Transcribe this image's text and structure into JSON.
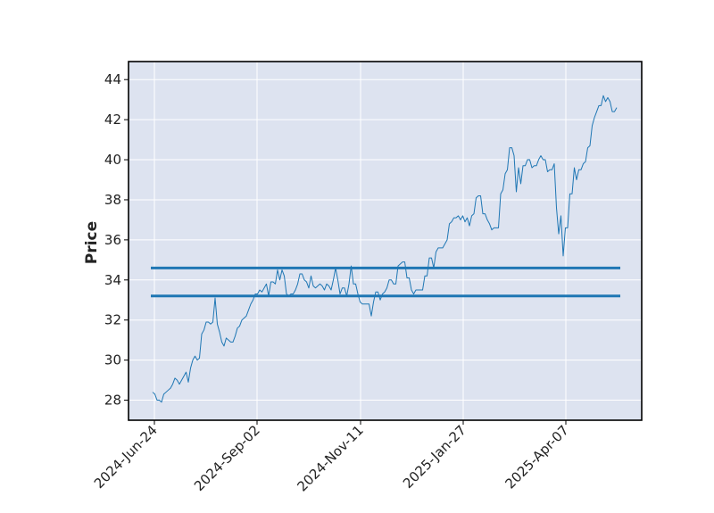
{
  "chart_data": {
    "type": "line",
    "title": "",
    "xlabel": "",
    "ylabel": "Price",
    "x_tick_labels": [
      "2024-Jun-24",
      "2024-Sep-02",
      "2024-Nov-11",
      "2025-Jan-27",
      "2025-Apr-07"
    ],
    "y_ticks": [
      28,
      30,
      32,
      34,
      36,
      38,
      40,
      42,
      44
    ],
    "ylim": [
      27,
      44.9
    ],
    "grid": true,
    "legend": "none",
    "colors": {
      "line": "#1f77b4",
      "plot_background": "#dde3f0",
      "grid": "#ffffff",
      "frame": "#000000"
    },
    "horizontal_lines": [
      34.6,
      33.2
    ],
    "series": [
      {
        "values": [
          28.4,
          28.3,
          28.0,
          28.0,
          27.9,
          28.3,
          28.4,
          28.5,
          28.6,
          28.8,
          29.1,
          29.0,
          28.8,
          29.0,
          29.2,
          29.4,
          28.9,
          29.6,
          30.0,
          30.2,
          30.0,
          30.1,
          31.3,
          31.5,
          31.9,
          31.9,
          31.8,
          31.9,
          33.1,
          31.8,
          31.4,
          30.9,
          30.7,
          31.1,
          31.0,
          30.9,
          30.9,
          31.2,
          31.6,
          31.7,
          32.0,
          32.1,
          32.2,
          32.5,
          32.8,
          33.0,
          33.3,
          33.3,
          33.5,
          33.4,
          33.6,
          33.8,
          33.2,
          33.9,
          33.9,
          33.8,
          34.5,
          34.0,
          34.5,
          34.2,
          33.3,
          33.2,
          33.3,
          33.3,
          33.5,
          33.8,
          34.3,
          34.3,
          34.0,
          33.9,
          33.6,
          34.2,
          33.7,
          33.6,
          33.7,
          33.8,
          33.7,
          33.5,
          33.8,
          33.7,
          33.5,
          34.0,
          34.6,
          34.0,
          33.3,
          33.6,
          33.6,
          33.2,
          33.8,
          34.7,
          33.8,
          33.8,
          33.3,
          32.9,
          32.8,
          32.8,
          32.8,
          32.8,
          32.2,
          32.9,
          33.4,
          33.4,
          33.0,
          33.3,
          33.4,
          33.6,
          34.0,
          34.0,
          33.8,
          33.8,
          34.7,
          34.8,
          34.9,
          34.9,
          34.1,
          34.1,
          33.5,
          33.3,
          33.5,
          33.5,
          33.5,
          33.5,
          34.2,
          34.2,
          35.1,
          35.1,
          34.6,
          35.4,
          35.6,
          35.6,
          35.6,
          35.8,
          36.0,
          36.8,
          36.9,
          37.1,
          37.1,
          37.2,
          37.0,
          37.2,
          36.9,
          37.1,
          36.7,
          37.2,
          37.3,
          38.1,
          38.2,
          38.2,
          37.3,
          37.3,
          37.0,
          36.8,
          36.5,
          36.6,
          36.6,
          36.6,
          38.3,
          38.5,
          39.3,
          39.5,
          40.6,
          40.6,
          40.2,
          38.4,
          39.6,
          38.8,
          39.7,
          39.7,
          40.0,
          40.0,
          39.6,
          39.7,
          39.7,
          40.0,
          40.2,
          40.0,
          40.0,
          39.4,
          39.5,
          39.5,
          39.8,
          37.6,
          36.3,
          37.2,
          35.2,
          36.6,
          36.6,
          38.3,
          38.3,
          39.6,
          39.0,
          39.5,
          39.5,
          39.8,
          39.9,
          40.6,
          40.7,
          41.7,
          42.1,
          42.4,
          42.7,
          42.7,
          43.2,
          42.9,
          43.1,
          42.9,
          42.4,
          42.4,
          42.6
        ]
      }
    ]
  }
}
